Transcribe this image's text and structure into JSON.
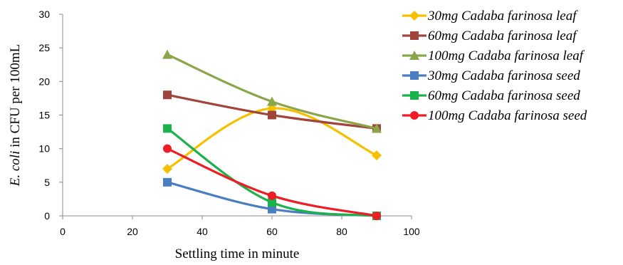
{
  "chart_data": {
    "type": "line",
    "title": "",
    "xlabel": "Settling time in minute",
    "ylabel_italic": "E. coli",
    "ylabel_rest": " in CFU per 100mL",
    "xlim": [
      0,
      100
    ],
    "ylim": [
      0,
      30
    ],
    "x_ticks": [
      "0",
      "20",
      "40",
      "60",
      "80",
      "100"
    ],
    "y_ticks": [
      "0",
      "5",
      "10",
      "15",
      "20",
      "25",
      "30"
    ],
    "grid": false,
    "legend_position": "right",
    "x": [
      30,
      60,
      90
    ],
    "series": [
      {
        "name": "30mg Cadaba farinosa leaf",
        "values": [
          7,
          16,
          9
        ],
        "color": "#F5C000",
        "marker": "diamond"
      },
      {
        "name": "60mg Cadaba farinosa leaf",
        "values": [
          18,
          15,
          13
        ],
        "color": "#A0453B",
        "marker": "square"
      },
      {
        "name": "100mg Cadaba farinosa leaf",
        "values": [
          24,
          17,
          13
        ],
        "color": "#8BA54A",
        "marker": "triangle"
      },
      {
        "name": "30mg Cadaba farinosa seed",
        "values": [
          5,
          1,
          0
        ],
        "color": "#4A7EC1",
        "marker": "square"
      },
      {
        "name": "60mg Cadaba farinosa seed",
        "values": [
          13,
          2,
          0
        ],
        "color": "#1CB24B",
        "marker": "square"
      },
      {
        "name": "100mg Cadaba farinosa seed",
        "values": [
          10,
          3,
          0
        ],
        "color": "#EE1C24",
        "marker": "circle"
      }
    ]
  }
}
